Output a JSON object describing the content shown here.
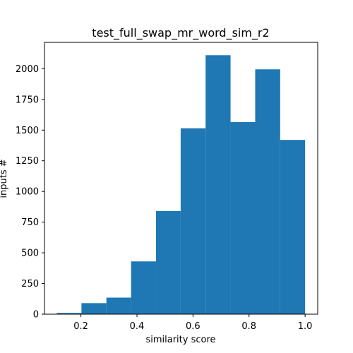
{
  "chart_data": {
    "type": "histogram",
    "title": "test_full_swap_mr_word_sim_r2",
    "xlabel": "similarity score",
    "ylabel": "inputs #",
    "xlim": [
      0.07,
      1.045
    ],
    "ylim": [
      0,
      2215
    ],
    "x_ticks": [
      0.2,
      0.4,
      0.6,
      0.8,
      1.0
    ],
    "x_tick_labels": [
      "0.2",
      "0.4",
      "0.6",
      "0.8",
      "1.0"
    ],
    "y_ticks": [
      0,
      250,
      500,
      750,
      1000,
      1250,
      1500,
      1750,
      2000
    ],
    "y_tick_labels": [
      "0",
      "250",
      "500",
      "750",
      "1000",
      "1250",
      "1500",
      "1750",
      "2000"
    ],
    "bins": [
      {
        "x0": 0.114,
        "x1": 0.202,
        "value": 10
      },
      {
        "x0": 0.202,
        "x1": 0.291,
        "value": 90
      },
      {
        "x0": 0.291,
        "x1": 0.379,
        "value": 135
      },
      {
        "x0": 0.379,
        "x1": 0.468,
        "value": 430
      },
      {
        "x0": 0.468,
        "x1": 0.556,
        "value": 840
      },
      {
        "x0": 0.556,
        "x1": 0.645,
        "value": 1515
      },
      {
        "x0": 0.645,
        "x1": 0.734,
        "value": 2110
      },
      {
        "x0": 0.734,
        "x1": 0.822,
        "value": 1565
      },
      {
        "x0": 0.822,
        "x1": 0.911,
        "value": 1995
      },
      {
        "x0": 0.911,
        "x1": 1.0,
        "value": 1420
      }
    ],
    "bar_color": "#1f77b4",
    "grid": false,
    "legend": "none"
  }
}
